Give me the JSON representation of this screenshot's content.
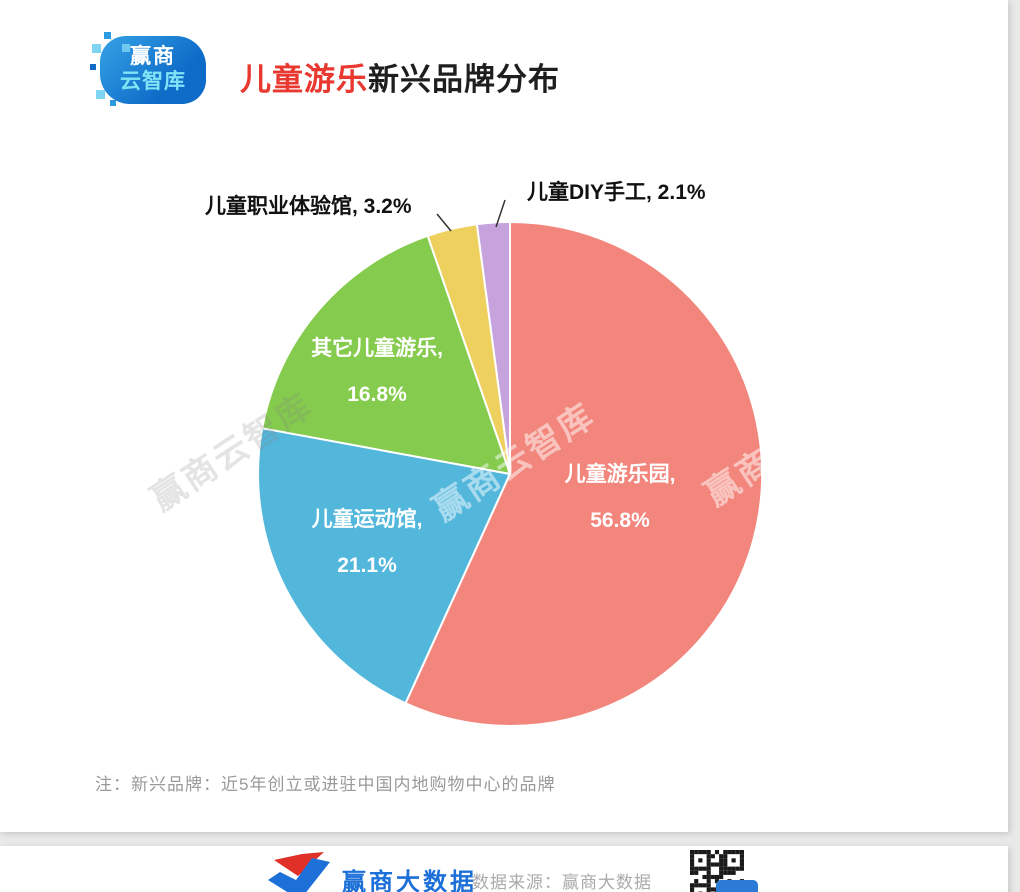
{
  "logo": {
    "line1": "赢商",
    "line2": "云智库"
  },
  "title": {
    "highlight": "儿童游乐",
    "rest": "新兴品牌分布"
  },
  "colors": {
    "title_highlight": "#E8382F",
    "brand_blue": "#1C70D8",
    "page_background": "#E9E9E9"
  },
  "chart_data": {
    "type": "pie",
    "title": "儿童游乐新兴品牌分布",
    "direction": "clockwise",
    "start_angle_deg": 0,
    "legend_position": "none",
    "slices": [
      {
        "name": "儿童游乐园",
        "value": 56.8,
        "color": "#F2867D",
        "label_line1": "儿童游乐园,",
        "label_line2": "56.8%",
        "label_placement": "inside"
      },
      {
        "name": "儿童运动馆",
        "value": 21.1,
        "color": "#53B7DC",
        "label_line1": "儿童运动馆,",
        "label_line2": "21.1%",
        "label_placement": "inside"
      },
      {
        "name": "其它儿童游乐",
        "value": 16.8,
        "color": "#85CB4E",
        "label_line1": "其它儿童游乐,",
        "label_line2": "16.8%",
        "label_placement": "inside"
      },
      {
        "name": "儿童职业体验馆",
        "value": 3.2,
        "color": "#EDD05E",
        "display": "儿童职业体验馆, 3.2%",
        "label_placement": "outside"
      },
      {
        "name": "儿童DIY手工",
        "value": 2.1,
        "color": "#C6A3DC",
        "display": "儿童DIY手工, 2.1%",
        "label_placement": "outside"
      }
    ]
  },
  "watermark": {
    "text": "赢商云智库"
  },
  "note": "注：新兴品牌：近5年创立或进驻中国内地购物中心的品牌",
  "footer": {
    "brand": "赢商大数据",
    "source": "数据来源：赢商大数据"
  }
}
